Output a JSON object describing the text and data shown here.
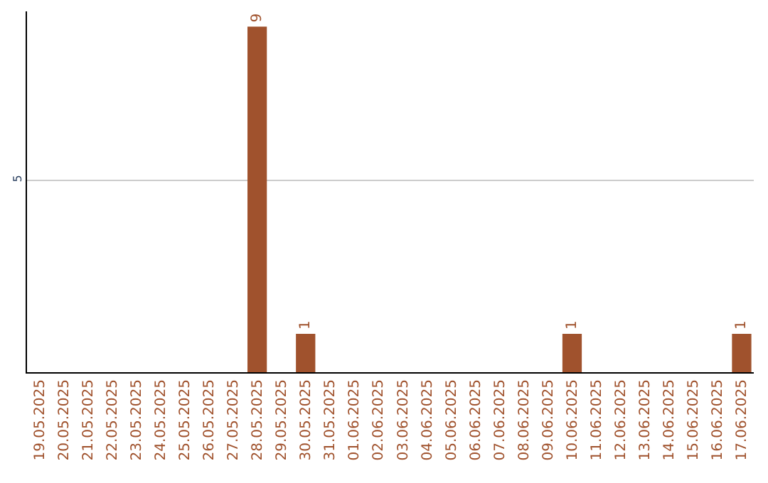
{
  "chart_data": {
    "type": "bar",
    "categories": [
      "19.05.2025",
      "20.05.2025",
      "21.05.2025",
      "22.05.2025",
      "23.05.2025",
      "24.05.2025",
      "25.05.2025",
      "26.05.2025",
      "27.05.2025",
      "28.05.2025",
      "29.05.2025",
      "30.05.2025",
      "31.05.2025",
      "01.06.2025",
      "02.06.2025",
      "03.06.2025",
      "04.06.2025",
      "05.06.2025",
      "06.06.2025",
      "07.06.2025",
      "08.06.2025",
      "09.06.2025",
      "10.06.2025",
      "11.06.2025",
      "12.06.2025",
      "13.06.2025",
      "14.06.2025",
      "15.06.2025",
      "16.06.2025",
      "17.06.2025"
    ],
    "values": [
      0,
      0,
      0,
      0,
      0,
      0,
      0,
      0,
      0,
      9,
      0,
      1,
      0,
      0,
      0,
      0,
      0,
      0,
      0,
      0,
      0,
      0,
      1,
      0,
      0,
      0,
      0,
      0,
      0,
      1
    ],
    "value_labels": [
      null,
      null,
      null,
      null,
      null,
      null,
      null,
      null,
      null,
      "9",
      null,
      "1",
      null,
      null,
      null,
      null,
      null,
      null,
      null,
      null,
      null,
      null,
      "1",
      null,
      null,
      null,
      null,
      null,
      null,
      "1"
    ],
    "color": "#a0522d",
    "ylim": [
      0,
      9.4
    ],
    "yticks": [
      5
    ],
    "grid": "y",
    "legend": false
  }
}
